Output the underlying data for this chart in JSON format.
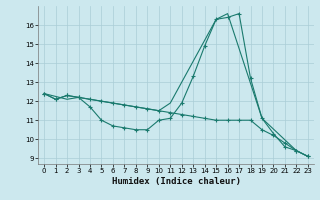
{
  "xlabel": "Humidex (Indice chaleur)",
  "background_color": "#cce8ee",
  "grid_color": "#aacdd6",
  "line_color": "#1a7a6e",
  "xlim": [
    -0.5,
    23.5
  ],
  "ylim": [
    8.7,
    17.0
  ],
  "xticks": [
    0,
    1,
    2,
    3,
    4,
    5,
    6,
    7,
    8,
    9,
    10,
    11,
    12,
    13,
    14,
    15,
    16,
    17,
    18,
    19,
    20,
    21,
    22,
    23
  ],
  "yticks": [
    9,
    10,
    11,
    12,
    13,
    14,
    15,
    16
  ],
  "line1_x": [
    0,
    1,
    2,
    3,
    4,
    5,
    6,
    7,
    8,
    9,
    10,
    11,
    12,
    13,
    14,
    15,
    16,
    17,
    18,
    19,
    20,
    21,
    22,
    23
  ],
  "line1_y": [
    12.4,
    12.1,
    12.3,
    12.2,
    11.7,
    11.0,
    10.7,
    10.6,
    10.5,
    10.5,
    11.0,
    11.1,
    11.9,
    13.3,
    14.9,
    16.3,
    16.4,
    16.6,
    13.2,
    11.1,
    10.3,
    9.6,
    9.4,
    9.1
  ],
  "line2_x": [
    0,
    1,
    2,
    3,
    4,
    5,
    6,
    7,
    8,
    9,
    10,
    11,
    12,
    13,
    14,
    15,
    16,
    17,
    18,
    19,
    20,
    21,
    22,
    23
  ],
  "line2_y": [
    12.4,
    12.1,
    12.3,
    12.2,
    12.1,
    12.0,
    11.9,
    11.8,
    11.7,
    11.6,
    11.5,
    11.4,
    11.3,
    11.2,
    11.1,
    11.0,
    11.0,
    11.0,
    11.0,
    10.5,
    10.2,
    9.8,
    9.4,
    9.1
  ],
  "line3_x": [
    0,
    2,
    3,
    10,
    11,
    15,
    16,
    19,
    22,
    23
  ],
  "line3_y": [
    12.4,
    12.1,
    12.2,
    11.5,
    11.9,
    16.3,
    16.6,
    11.1,
    9.4,
    9.1
  ]
}
